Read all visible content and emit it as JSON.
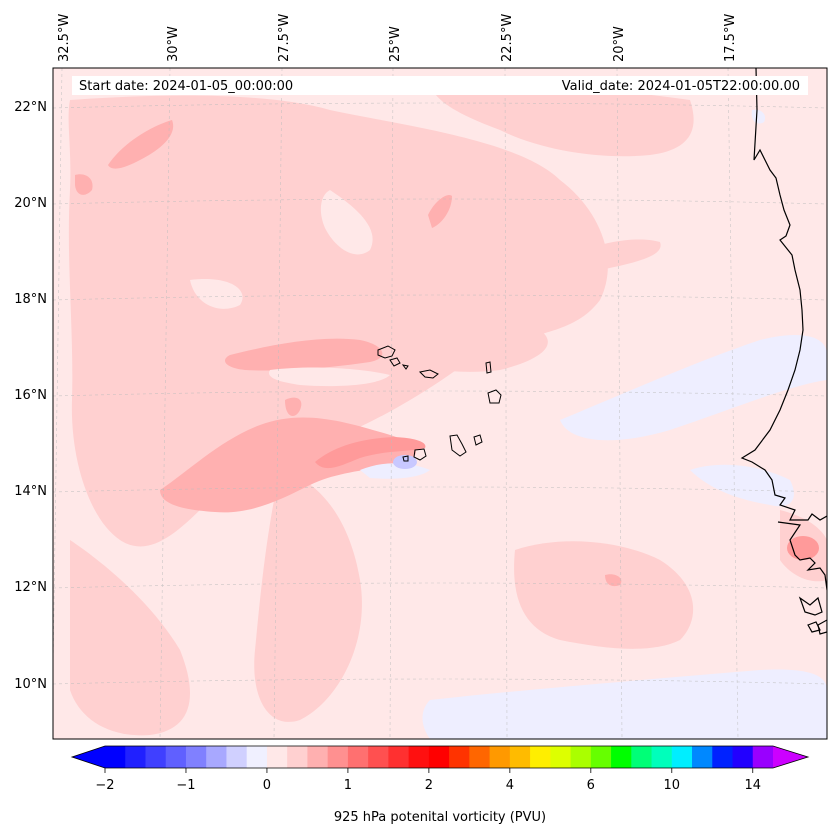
{
  "header": {
    "start_date": "Start date: 2024-01-05_00:00:00",
    "valid_date": "Valid_date: 2024-01-05T22:00:00.00"
  },
  "longitude_labels": [
    "32.5°W",
    "30°W",
    "27.5°W",
    "25°W",
    "22.5°W",
    "20°W",
    "17.5°W"
  ],
  "latitude_labels": [
    "22°N",
    "20°N",
    "18°N",
    "16°N",
    "14°N",
    "12°N",
    "10°N"
  ],
  "colorbar": {
    "label": "925 hPa potenital vorticity (PVU)",
    "ticks": [
      "−2",
      "−1",
      "0",
      "1",
      "2",
      "4",
      "6",
      "10",
      "14"
    ],
    "colors": [
      "#0000ff",
      "#2020ff",
      "#4040ff",
      "#6060ff",
      "#8080ff",
      "#a8a8ff",
      "#d0d0ff",
      "#f0f0ff",
      "#ffe8e8",
      "#ffd0d0",
      "#ffb0b0",
      "#ff9090",
      "#ff7070",
      "#ff5050",
      "#ff3030",
      "#ff1010",
      "#ff0000",
      "#ff3300",
      "#ff6600",
      "#ff9900",
      "#ffbb00",
      "#ffee00",
      "#ddff00",
      "#aaff00",
      "#66ff00",
      "#00ff00",
      "#00ff77",
      "#00ffbb",
      "#00eeff",
      "#0088ff",
      "#0022ff",
      "#2200ff",
      "#9900ff"
    ],
    "extend_low_color": "#0000ff",
    "extend_high_color": "#cc00ff"
  },
  "colors": {
    "background_field": "#ffe8e8",
    "light_pink": "#ffd0d0",
    "medium_pink": "#ffb0b0",
    "strong_pink": "#ff9a9a",
    "pale_blue": "#eeeeff",
    "blue_patch": "#c8c8ff",
    "coastline": "#000000"
  }
}
